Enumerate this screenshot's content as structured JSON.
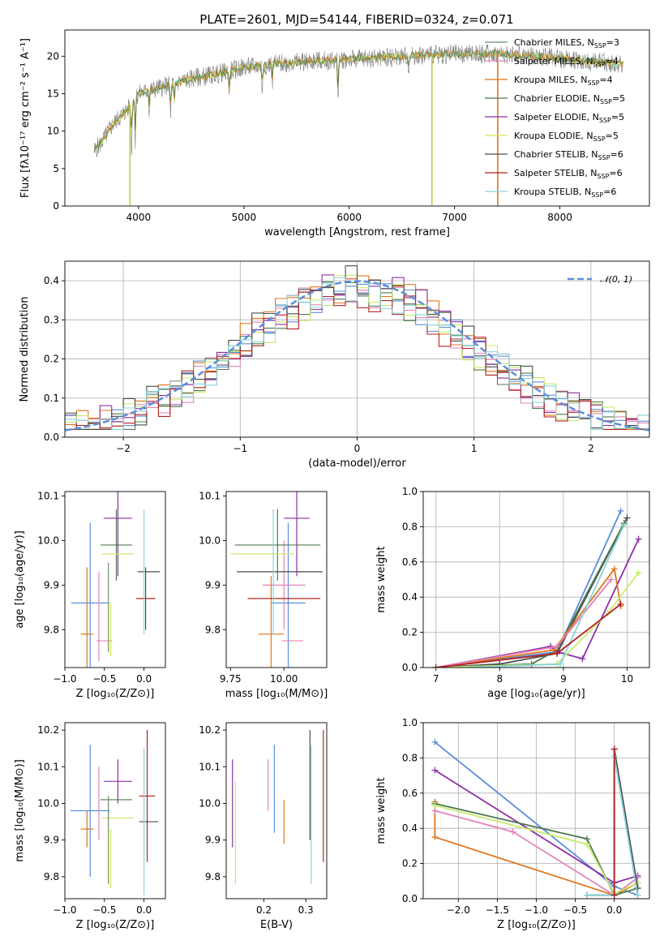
{
  "figure": {
    "title": "PLATE=2601, MJD=54144, FIBERID=0324, z=0.071"
  },
  "colors": {
    "Chabrier MILES": "#6b8e6b",
    "Salpeter MILES": "#e383b9",
    "Kroupa MILES": "#e0761c",
    "Chabrier ELODIE": "#4f7a4f",
    "Salpeter ELODIE": "#8e2fa8",
    "Kroupa ELODIE": "#d6e84f",
    "Chabrier STELIB": "#4a4a4a",
    "Salpeter STELIB": "#b22222",
    "Kroupa STELIB": "#88d4d9",
    "blue": "#5b8fdc",
    "lime": "#c8ec6e",
    "data": "#7f7f7f"
  },
  "chart_data": [
    {
      "type": "line",
      "name": "spectrum",
      "xlabel": "wavelength [Angstrom, rest frame]",
      "ylabel": "Flux [fλ10⁻¹⁷ erg cm⁻² s⁻¹ A⁻¹]",
      "xlim": [
        3300,
        8850
      ],
      "ylim": [
        0,
        23.5
      ],
      "xticks": [
        4000,
        5000,
        6000,
        7000,
        8000
      ],
      "yticks": [
        0,
        5,
        10,
        15,
        20
      ],
      "legend_position": "right",
      "legend": [
        {
          "label": "Chabrier MILES, N",
          "sub": "SSP",
          "tail": "=3",
          "color": "#6b8e6b"
        },
        {
          "label": "Salpeter MILES, N",
          "sub": "SSP",
          "tail": "=4",
          "color": "#e383b9"
        },
        {
          "label": "Kroupa MILES, N",
          "sub": "SSP",
          "tail": "=4",
          "color": "#e0761c"
        },
        {
          "label": "Chabrier ELODIE, N",
          "sub": "SSP",
          "tail": "=5",
          "color": "#4f7a4f"
        },
        {
          "label": "Salpeter ELODIE, N",
          "sub": "SSP",
          "tail": "=5",
          "color": "#8e2fa8"
        },
        {
          "label": "Kroupa ELODIE, N",
          "sub": "SSP",
          "tail": "=5",
          "color": "#d6e84f"
        },
        {
          "label": "Chabrier STELIB, N",
          "sub": "SSP",
          "tail": "=6",
          "color": "#4a4a4a"
        },
        {
          "label": "Salpeter STELIB, N",
          "sub": "SSP",
          "tail": "=6",
          "color": "#b22222"
        },
        {
          "label": "Kroupa STELIB, N",
          "sub": "SSP",
          "tail": "=6",
          "color": "#88d4d9"
        }
      ],
      "continuum": {
        "x": [
          3570,
          3650,
          3750,
          3900,
          4000,
          4200,
          4500,
          4800,
          5000,
          5300,
          5600,
          6000,
          6300,
          6600,
          7000,
          7400,
          7800,
          8200,
          8600
        ],
        "y": [
          7.2,
          8.5,
          10.8,
          13.0,
          15.0,
          15.8,
          17.0,
          17.8,
          18.5,
          19.0,
          19.3,
          19.6,
          19.8,
          20.1,
          20.3,
          20.3,
          20.0,
          19.4,
          19.0
        ]
      },
      "absorption_lines": [
        {
          "x": 3934,
          "depth": 6.5
        },
        {
          "x": 3968,
          "depth": 5.5
        },
        {
          "x": 4102,
          "depth": 3.0
        },
        {
          "x": 4304,
          "depth": 4.5
        },
        {
          "x": 4340,
          "depth": 3.0
        },
        {
          "x": 4861,
          "depth": 3.0
        },
        {
          "x": 5175,
          "depth": 4.0
        },
        {
          "x": 5270,
          "depth": 2.5
        },
        {
          "x": 5893,
          "depth": 6.0
        },
        {
          "x": 6563,
          "depth": 2.0
        }
      ],
      "spikes": [
        {
          "x": 3918,
          "color": "#c8c850"
        },
        {
          "x": 6785,
          "color": "#c8c850"
        },
        {
          "x": 7410,
          "color": "#e0761c"
        }
      ],
      "model_x_range": [
        3580,
        8600
      ]
    },
    {
      "type": "histogram",
      "name": "residuals",
      "xlabel": "(data-model)/error",
      "ylabel": "Normed distribution",
      "xlim": [
        -2.5,
        2.5
      ],
      "ylim": [
        0,
        0.45
      ],
      "xticks": [
        -2,
        -1,
        0,
        1,
        2
      ],
      "xtick_labels": [
        "−2",
        "−1",
        "0",
        "1",
        "2"
      ],
      "yticks": [
        0.0,
        0.1,
        0.2,
        0.3,
        0.4
      ],
      "ytick_labels": [
        "0.0",
        "0.1",
        "0.2",
        "0.3",
        "0.4"
      ],
      "grid": true,
      "legend_position": "top-right",
      "gaussian_label": "𝒩(0, 1)",
      "gaussian_color": "#5b8fdc",
      "bin_width": 0.1,
      "series": [
        {
          "color": "#5b8fdc",
          "scale": 1.0,
          "seed": 11
        },
        {
          "color": "#e383b9",
          "scale": 0.98,
          "seed": 23
        },
        {
          "color": "#e0761c",
          "scale": 1.02,
          "seed": 37
        },
        {
          "color": "#4f7a4f",
          "scale": 0.97,
          "seed": 41
        },
        {
          "color": "#8e2fa8",
          "scale": 1.01,
          "seed": 53
        },
        {
          "color": "#c8ec6e",
          "scale": 0.99,
          "seed": 67
        },
        {
          "color": "#4a4a4a",
          "scale": 1.03,
          "seed": 71
        },
        {
          "color": "#b22222",
          "scale": 0.96,
          "seed": 83
        },
        {
          "color": "#88d4d9",
          "scale": 1.0,
          "seed": 97
        }
      ]
    },
    {
      "type": "errorbar",
      "name": "Z-vs-age",
      "xlabel": "Z [log₁₀(Z/Z⊙)]",
      "ylabel": "age  [log₁₀(age/yr)]",
      "xlim": [
        -1.0,
        0.27
      ],
      "ylim": [
        9.715,
        10.11
      ],
      "xticks": [
        -1.0,
        -0.5,
        0.0
      ],
      "xtick_labels": [
        "−1.0",
        "−0.5",
        "0.0"
      ],
      "yticks": [
        9.8,
        9.9,
        10.0,
        10.1
      ],
      "ytick_labels": [
        "9.8",
        "9.9",
        "10.0",
        "10.1"
      ],
      "points": [
        {
          "x": -0.68,
          "y": 9.86,
          "xerr": 0.24,
          "yerr": 0.18,
          "color": "#5b8fdc"
        },
        {
          "x": -0.57,
          "y": 9.83,
          "xerr": 0.0,
          "yerr": 0.1,
          "color": "#e383b9"
        },
        {
          "x": -0.72,
          "y": 9.79,
          "xerr": 0.08,
          "yerr": 0.15,
          "color": "#e0761c"
        },
        {
          "x": -0.35,
          "y": 9.99,
          "xerr": 0.2,
          "yerr": 0.08,
          "color": "#4f7a4f"
        },
        {
          "x": -0.33,
          "y": 10.05,
          "xerr": 0.18,
          "yerr": 0.13,
          "color": "#8e2fa8"
        },
        {
          "x": -0.33,
          "y": 9.97,
          "xerr": 0.2,
          "yerr": 0.0,
          "color": "#c8ec6e"
        },
        {
          "x": -0.45,
          "y": 9.85,
          "xerr": 0.0,
          "yerr": 0.1,
          "color": "#6b8e6b"
        },
        {
          "x": -0.5,
          "y": 9.775,
          "xerr": 0.1,
          "yerr": 0.0,
          "color": "#e383b9"
        },
        {
          "x": -0.42,
          "y": 9.8,
          "xerr": 0.0,
          "yerr": 0.06,
          "color": "#d6e84f"
        },
        {
          "x": 0.02,
          "y": 9.87,
          "xerr": 0.12,
          "yerr": 0.07,
          "color": "#b22222"
        },
        {
          "x": 0.06,
          "y": 9.93,
          "xerr": 0.14,
          "yerr": 0.0,
          "color": "#4a4a4a"
        },
        {
          "x": 0.0,
          "y": 9.93,
          "xerr": 0.0,
          "yerr": 0.14,
          "color": "#88d4d9"
        }
      ]
    },
    {
      "type": "errorbar",
      "name": "mass-vs-age",
      "xlabel": "mass [log₁₀(M/M⊙)]",
      "ylabel": "",
      "xlim": [
        9.73,
        10.2
      ],
      "ylim": [
        9.715,
        10.11
      ],
      "xticks": [
        9.75,
        10.0
      ],
      "xtick_labels": [
        "9.75",
        "10.00"
      ],
      "yticks": [
        9.8,
        9.9,
        10.0,
        10.1
      ],
      "ytick_labels": [
        "9.8",
        "9.9",
        "10.0",
        "10.1"
      ],
      "points": [
        {
          "x": 10.02,
          "y": 9.86,
          "xerr": 0.08,
          "yerr": 0.18,
          "color": "#5b8fdc"
        },
        {
          "x": 10.0,
          "y": 9.9,
          "xerr": 0.1,
          "yerr": 0.1,
          "color": "#e383b9"
        },
        {
          "x": 9.94,
          "y": 9.79,
          "xerr": 0.06,
          "yerr": 0.13,
          "color": "#e0761c"
        },
        {
          "x": 9.97,
          "y": 9.99,
          "xerr": 0.2,
          "yerr": 0.08,
          "color": "#4f7a4f"
        },
        {
          "x": 10.06,
          "y": 10.05,
          "xerr": 0.06,
          "yerr": 0.13,
          "color": "#8e2fa8"
        },
        {
          "x": 9.9,
          "y": 9.97,
          "xerr": 0.15,
          "yerr": 0.0,
          "color": "#c8ec6e"
        },
        {
          "x": 9.98,
          "y": 9.93,
          "xerr": 0.2,
          "yerr": 0.0,
          "color": "#4a4a4a"
        },
        {
          "x": 10.0,
          "y": 9.87,
          "xerr": 0.17,
          "yerr": 0.0,
          "color": "#b22222"
        },
        {
          "x": 9.95,
          "y": 9.93,
          "xerr": 0.0,
          "yerr": 0.14,
          "color": "#88d4d9"
        },
        {
          "x": 10.04,
          "y": 9.775,
          "xerr": 0.05,
          "yerr": 0.0,
          "color": "#e383b9"
        }
      ]
    },
    {
      "type": "line",
      "name": "age-vs-mass-weight",
      "xlabel": "age  [log₁₀(age/yr)]",
      "ylabel": "mass weight",
      "xlim": [
        6.8,
        10.35
      ],
      "ylim": [
        0,
        1.0
      ],
      "xticks": [
        7,
        8,
        9,
        10
      ],
      "yticks": [
        0.0,
        0.2,
        0.4,
        0.6,
        0.8,
        1.0
      ],
      "ytick_labels": [
        "0.0",
        "0.2",
        "0.4",
        "0.6",
        "0.8",
        "1.0"
      ],
      "grid": true,
      "series": [
        {
          "color": "#5b8fdc",
          "x": [
            7.0,
            8.9,
            9.9
          ],
          "y": [
            0.0,
            0.09,
            0.89
          ]
        },
        {
          "color": "#4a4a4a",
          "x": [
            7.0,
            8.0,
            8.9,
            10.0
          ],
          "y": [
            0.0,
            0.02,
            0.08,
            0.85
          ]
        },
        {
          "color": "#4f7a4f",
          "x": [
            7.0,
            8.5,
            8.9,
            9.95
          ],
          "y": [
            0.0,
            0.02,
            0.1,
            0.82
          ]
        },
        {
          "color": "#8e2fa8",
          "x": [
            7.0,
            8.8,
            8.9,
            9.3,
            10.18
          ],
          "y": [
            0.0,
            0.12,
            0.09,
            0.05,
            0.73
          ]
        },
        {
          "color": "#e0761c",
          "x": [
            7.0,
            8.85,
            9.8,
            9.9
          ],
          "y": [
            0.0,
            0.1,
            0.56,
            0.35
          ]
        },
        {
          "color": "#e383b9",
          "x": [
            7.0,
            8.9,
            9.75
          ],
          "y": [
            0.0,
            0.12,
            0.5
          ]
        },
        {
          "color": "#c8ec6e",
          "x": [
            7.0,
            8.9,
            9.7,
            10.18
          ],
          "y": [
            0.0,
            0.02,
            0.31,
            0.54
          ]
        },
        {
          "color": "#88d4d9",
          "x": [
            7.5,
            8.95,
            9.95
          ],
          "y": [
            0.0,
            0.02,
            0.81
          ]
        },
        {
          "color": "#b22222",
          "x": [
            7.0,
            8.9,
            9.9
          ],
          "y": [
            0.0,
            0.08,
            0.36
          ]
        }
      ]
    },
    {
      "type": "errorbar",
      "name": "Z-vs-mass",
      "xlabel": "Z [log₁₀(Z/Z⊙)]",
      "ylabel": "mass [log₁₀(M/M⊙)]",
      "xlim": [
        -1.0,
        0.27
      ],
      "ylim": [
        9.74,
        10.22
      ],
      "xticks": [
        -1.0,
        -0.5,
        0.0
      ],
      "xtick_labels": [
        "−1.0",
        "−0.5",
        "0.0"
      ],
      "yticks": [
        9.8,
        9.9,
        10.0,
        10.1,
        10.2
      ],
      "ytick_labels": [
        "9.8",
        "9.9",
        "10.0",
        "10.1",
        "10.2"
      ],
      "points": [
        {
          "x": -0.68,
          "y": 9.98,
          "xerr": 0.25,
          "yerr": 0.18,
          "color": "#5b8fdc"
        },
        {
          "x": -0.57,
          "y": 10.0,
          "xerr": 0.0,
          "yerr": 0.1,
          "color": "#e383b9"
        },
        {
          "x": -0.72,
          "y": 9.93,
          "xerr": 0.08,
          "yerr": 0.05,
          "color": "#e0761c"
        },
        {
          "x": -0.35,
          "y": 10.01,
          "xerr": 0.2,
          "yerr": 0.0,
          "color": "#4f7a4f"
        },
        {
          "x": -0.33,
          "y": 10.06,
          "xerr": 0.18,
          "yerr": 0.06,
          "color": "#8e2fa8"
        },
        {
          "x": -0.33,
          "y": 9.96,
          "xerr": 0.2,
          "yerr": 0.0,
          "color": "#c8ec6e"
        },
        {
          "x": -0.45,
          "y": 9.9,
          "xerr": 0.0,
          "yerr": 0.12,
          "color": "#6b8e6b"
        },
        {
          "x": -0.42,
          "y": 9.85,
          "xerr": 0.0,
          "yerr": 0.08,
          "color": "#d6e84f"
        },
        {
          "x": 0.04,
          "y": 10.02,
          "xerr": 0.1,
          "yerr": 0.18,
          "color": "#b22222"
        },
        {
          "x": 0.06,
          "y": 9.95,
          "xerr": 0.12,
          "yerr": 0.0,
          "color": "#4a4a4a"
        },
        {
          "x": 0.0,
          "y": 9.95,
          "xerr": 0.0,
          "yerr": 0.2,
          "color": "#88d4d9"
        }
      ]
    },
    {
      "type": "errorbar",
      "name": "EBV-vs-mass",
      "xlabel": "E(B-V)",
      "ylabel": "",
      "xlim": [
        0.11,
        0.35
      ],
      "ylim": [
        9.74,
        10.22
      ],
      "xticks": [
        0.1,
        0.2,
        0.3
      ],
      "xtick_labels": [
        "0.1",
        "0.2",
        "0.3"
      ],
      "yticks": [
        9.8,
        9.9,
        10.0,
        10.1,
        10.2
      ],
      "ytick_labels": [
        "9.8",
        "9.9",
        "10.0",
        "10.1",
        "10.2"
      ],
      "points": [
        {
          "x": 0.125,
          "y": 10.0,
          "xerr": 0.0,
          "yerr": 0.12,
          "color": "#8e2fa8"
        },
        {
          "x": 0.132,
          "y": 9.92,
          "xerr": 0.0,
          "yerr": 0.14,
          "color": "#c8ec6e"
        },
        {
          "x": 0.21,
          "y": 10.05,
          "xerr": 0.0,
          "yerr": 0.07,
          "color": "#e383b9"
        },
        {
          "x": 0.225,
          "y": 10.04,
          "xerr": 0.0,
          "yerr": 0.12,
          "color": "#5b8fdc"
        },
        {
          "x": 0.248,
          "y": 9.95,
          "xerr": 0.0,
          "yerr": 0.06,
          "color": "#e0761c"
        },
        {
          "x": 0.31,
          "y": 10.05,
          "xerr": 0.0,
          "yerr": 0.15,
          "color": "#4a4a4a"
        },
        {
          "x": 0.313,
          "y": 9.97,
          "xerr": 0.0,
          "yerr": 0.19,
          "color": "#88d4d9"
        },
        {
          "x": 0.342,
          "y": 10.02,
          "xerr": 0.0,
          "yerr": 0.18,
          "color": "#b22222"
        }
      ]
    },
    {
      "type": "line",
      "name": "Z-vs-mass-weight",
      "xlabel": "Z [log₁₀(Z/Z⊙)]",
      "ylabel": "mass weight",
      "xlim": [
        -2.45,
        0.45
      ],
      "ylim": [
        0,
        1.0
      ],
      "xticks": [
        -2.0,
        -1.5,
        -1.0,
        -0.5,
        0.0
      ],
      "xtick_labels": [
        "−2.0",
        "−1.5",
        "−1.0",
        "−0.5",
        "0.0"
      ],
      "yticks": [
        0.0,
        0.2,
        0.4,
        0.6,
        0.8,
        1.0
      ],
      "ytick_labels": [
        "0.0",
        "0.2",
        "0.4",
        "0.6",
        "0.8",
        "1.0"
      ],
      "grid": true,
      "series": [
        {
          "color": "#5b8fdc",
          "x": [
            -2.3,
            0.0,
            0.3
          ],
          "y": [
            0.89,
            0.07,
            0.02
          ]
        },
        {
          "color": "#8e2fa8",
          "x": [
            -2.3,
            0.0,
            0.3
          ],
          "y": [
            0.73,
            0.09,
            0.13
          ]
        },
        {
          "color": "#e0761c",
          "x": [
            -2.3,
            -2.3,
            0.0,
            0.3
          ],
          "y": [
            0.55,
            0.35,
            0.02,
            0.09
          ]
        },
        {
          "color": "#e383b9",
          "x": [
            -2.3,
            -1.3,
            0.0,
            0.3
          ],
          "y": [
            0.5,
            0.38,
            0.02,
            0.12
          ]
        },
        {
          "color": "#4f7a4f",
          "x": [
            -2.3,
            -0.35,
            0.0,
            0.3
          ],
          "y": [
            0.54,
            0.34,
            0.02,
            0.06
          ]
        },
        {
          "color": "#c8ec6e",
          "x": [
            -2.3,
            -0.35,
            0.0,
            0.3
          ],
          "y": [
            0.53,
            0.31,
            0.03,
            0.09
          ]
        },
        {
          "color": "#4a4a4a",
          "x": [
            -0.35,
            0.0,
            0.0,
            0.3
          ],
          "y": [
            0.02,
            0.02,
            0.85,
            0.06
          ]
        },
        {
          "color": "#88d4d9",
          "x": [
            -0.35,
            0.0,
            0.0,
            0.3
          ],
          "y": [
            0.02,
            0.02,
            0.81,
            0.02
          ]
        },
        {
          "color": "#b22222",
          "x": [
            0.0,
            0.0
          ],
          "y": [
            0.02,
            0.85
          ]
        }
      ]
    }
  ]
}
